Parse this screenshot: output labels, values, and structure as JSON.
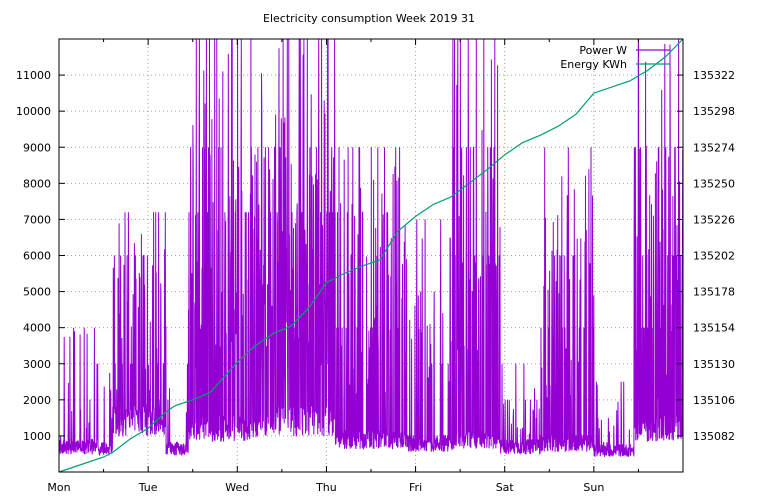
{
  "chart_data": {
    "type": "line",
    "title": "Electricity consumption Week 2019 31",
    "xlabel": "",
    "ylabel": "",
    "x_ticks": [
      "Mon",
      "Tue",
      "Wed",
      "Thu",
      "Fri",
      "Sat",
      "Sun"
    ],
    "x_range_days": [
      0,
      7
    ],
    "ylim_left": [
      0,
      12000
    ],
    "ylim_right": [
      135058,
      135346
    ],
    "y_ticks_left": [
      1000,
      2000,
      3000,
      4000,
      5000,
      6000,
      7000,
      8000,
      9000,
      10000,
      11000
    ],
    "y_ticks_right": [
      135082,
      135106,
      135130,
      135154,
      135178,
      135202,
      135226,
      135250,
      135274,
      135298,
      135322
    ],
    "grid": true,
    "legend_position": "top-right",
    "series": [
      {
        "name": "Power W",
        "axis": "left",
        "color": "#9400d3",
        "segments": [
          {
            "start": 0.0,
            "end": 0.45,
            "base": 700,
            "peaks": [
              2000,
              3000,
              4000
            ],
            "burst": 0.1
          },
          {
            "start": 0.45,
            "end": 0.6,
            "base": 650,
            "peaks": [
              1500,
              2800
            ],
            "burst": 0.08
          },
          {
            "start": 0.6,
            "end": 1.2,
            "base": 1400,
            "peaks": [
              3000,
              6000,
              7200
            ],
            "burst": 0.35
          },
          {
            "start": 1.2,
            "end": 1.45,
            "base": 650,
            "peaks": [
              2000,
              3000
            ],
            "burst": 0.1
          },
          {
            "start": 1.45,
            "end": 2.25,
            "base": 1200,
            "peaks": [
              4500,
              7200,
              9000,
              12000
            ],
            "burst": 0.4
          },
          {
            "start": 2.25,
            "end": 3.1,
            "base": 1400,
            "peaks": [
              5200,
              7200,
              9000,
              12000
            ],
            "burst": 0.55
          },
          {
            "start": 3.1,
            "end": 3.85,
            "base": 900,
            "peaks": [
              4000,
              7200,
              9000
            ],
            "burst": 0.4
          },
          {
            "start": 3.85,
            "end": 4.4,
            "base": 800,
            "peaks": [
              3000,
              5000,
              7000
            ],
            "burst": 0.25
          },
          {
            "start": 4.4,
            "end": 4.95,
            "base": 900,
            "peaks": [
              6000,
              9000,
              12000
            ],
            "burst": 0.45
          },
          {
            "start": 4.95,
            "end": 5.4,
            "base": 700,
            "peaks": [
              2000,
              3000
            ],
            "burst": 0.15
          },
          {
            "start": 5.4,
            "end": 6.0,
            "base": 800,
            "peaks": [
              4000,
              6000,
              9000
            ],
            "burst": 0.3
          },
          {
            "start": 6.0,
            "end": 6.45,
            "base": 600,
            "peaks": [
              1500,
              2500
            ],
            "burst": 0.1
          },
          {
            "start": 6.45,
            "end": 7.0,
            "base": 1200,
            "peaks": [
              4000,
              6000,
              9000,
              12000
            ],
            "burst": 0.4
          }
        ]
      },
      {
        "name": "Energy KWh",
        "axis": "right",
        "color": "#009e73",
        "points": [
          [
            0.0,
            135058
          ],
          [
            0.25,
            135063
          ],
          [
            0.5,
            135068
          ],
          [
            0.6,
            135071
          ],
          [
            0.8,
            135080
          ],
          [
            1.0,
            135087
          ],
          [
            1.2,
            135098
          ],
          [
            1.3,
            135102
          ],
          [
            1.5,
            135106
          ],
          [
            1.7,
            135111
          ],
          [
            2.0,
            135131
          ],
          [
            2.2,
            135142
          ],
          [
            2.4,
            135150
          ],
          [
            2.6,
            135155
          ],
          [
            2.8,
            135167
          ],
          [
            3.0,
            135184
          ],
          [
            3.2,
            135190
          ],
          [
            3.4,
            135195
          ],
          [
            3.6,
            135199
          ],
          [
            3.8,
            135218
          ],
          [
            4.0,
            135228
          ],
          [
            4.2,
            135236
          ],
          [
            4.4,
            135241
          ],
          [
            4.6,
            135250
          ],
          [
            4.8,
            135259
          ],
          [
            5.0,
            135269
          ],
          [
            5.2,
            135277
          ],
          [
            5.4,
            135282
          ],
          [
            5.6,
            135288
          ],
          [
            5.8,
            135296
          ],
          [
            6.0,
            135310
          ],
          [
            6.2,
            135314
          ],
          [
            6.4,
            135318
          ],
          [
            6.6,
            135325
          ],
          [
            6.8,
            135334
          ],
          [
            7.0,
            135346
          ]
        ]
      }
    ]
  }
}
